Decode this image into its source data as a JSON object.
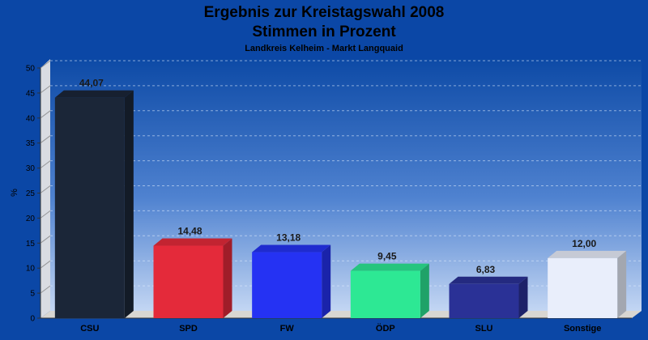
{
  "chart_data": {
    "type": "bar",
    "title_line1": "Ergebnis zur Kreistagswahl 2008",
    "title_line2": "Stimmen in Prozent",
    "subtitle": "Landkreis Kelheim - Markt Langquaid",
    "ylabel": "%",
    "ylim": [
      0,
      50
    ],
    "yticks": [
      0,
      5,
      10,
      15,
      20,
      25,
      30,
      35,
      40,
      45,
      50
    ],
    "grid": true,
    "categories": [
      "CSU",
      "SPD",
      "FW",
      "ÖDP",
      "SLU",
      "Sonstige"
    ],
    "values": [
      44.07,
      14.48,
      13.18,
      9.45,
      6.83,
      12.0
    ],
    "value_labels": [
      "44,07",
      "14,48",
      "13,18",
      "9,45",
      "6,83",
      "12,00"
    ],
    "colors": [
      "#1b2638",
      "#e42a3a",
      "#2532f3",
      "#2de894",
      "#2a3196",
      "#e9eefb"
    ]
  }
}
